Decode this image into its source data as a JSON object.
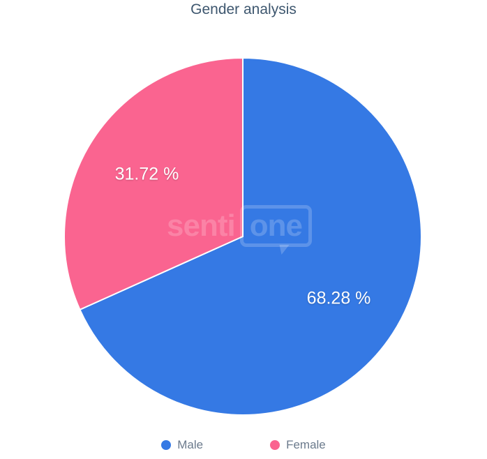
{
  "chart_data": {
    "type": "pie",
    "title": "Gender analysis",
    "unit": "%",
    "legend_position": "bottom",
    "start_angle_deg": 0,
    "direction": "clockwise",
    "series": [
      {
        "name": "Male",
        "value": 68.28,
        "label": "68.28 %",
        "color": "#3579e4"
      },
      {
        "name": "Female",
        "value": 31.72,
        "label": "31.72 %",
        "color": "#fa6490"
      }
    ],
    "label_text_color": "#ffffff",
    "title_color": "#3e576f",
    "legend_text_color": "#6b7a8c",
    "slice_border_color": "#ffffff"
  },
  "watermark": {
    "prefix": "senti",
    "boxed": "one"
  }
}
